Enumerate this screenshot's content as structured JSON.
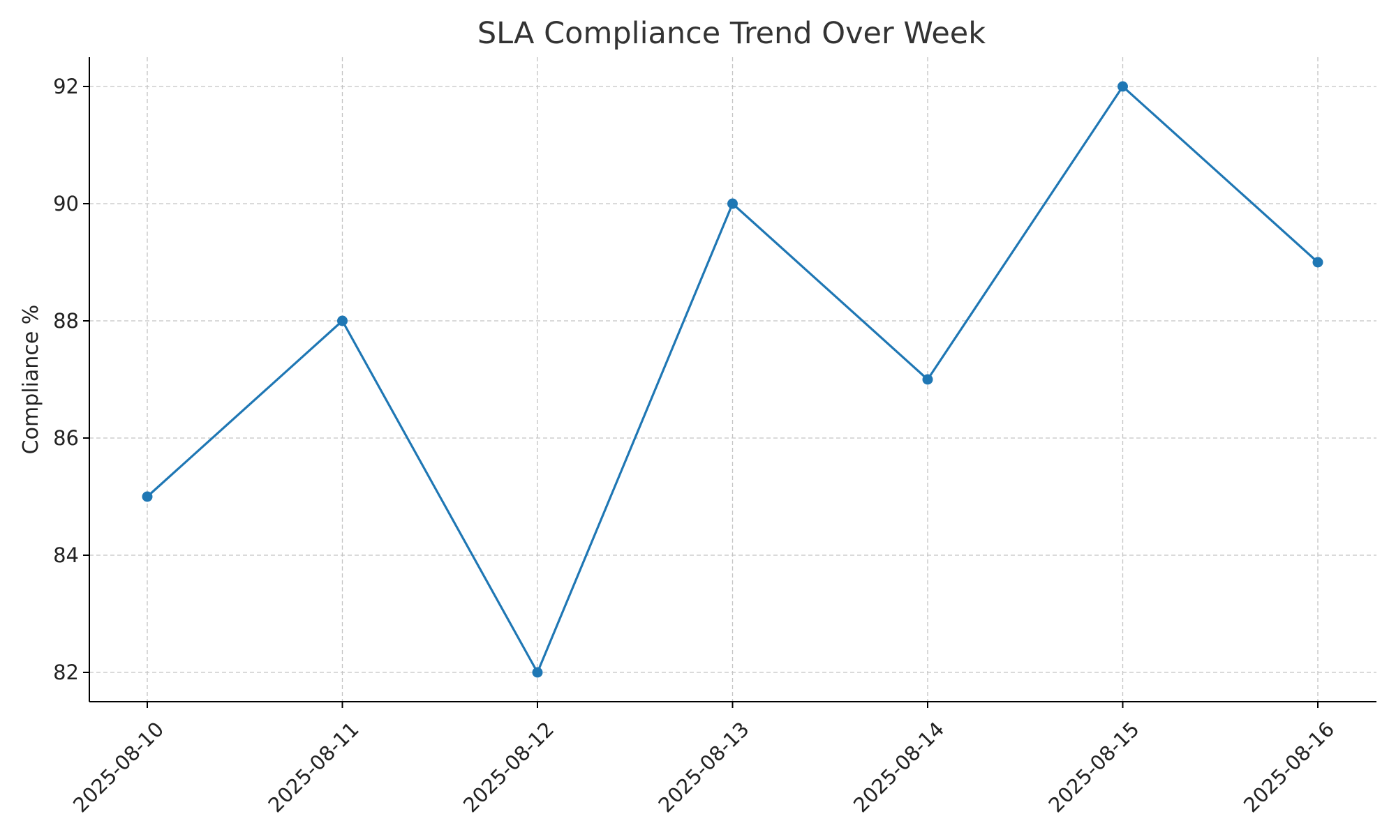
{
  "chart_data": {
    "type": "line",
    "title": "SLA Compliance Trend Over Week",
    "xlabel": "",
    "ylabel": "Compliance %",
    "categories": [
      "2025-08-10",
      "2025-08-11",
      "2025-08-12",
      "2025-08-13",
      "2025-08-14",
      "2025-08-15",
      "2025-08-16"
    ],
    "series": [
      {
        "values": [
          85,
          88,
          82,
          90,
          87,
          92,
          89
        ],
        "color": "#1f77b4",
        "marker": "circle"
      }
    ],
    "ylim": [
      81.5,
      92.5
    ],
    "yticks": [
      82,
      84,
      86,
      88,
      90,
      92
    ],
    "grid": true,
    "grid_style": "dashed",
    "legend": "none",
    "xtick_rotation": 45
  }
}
